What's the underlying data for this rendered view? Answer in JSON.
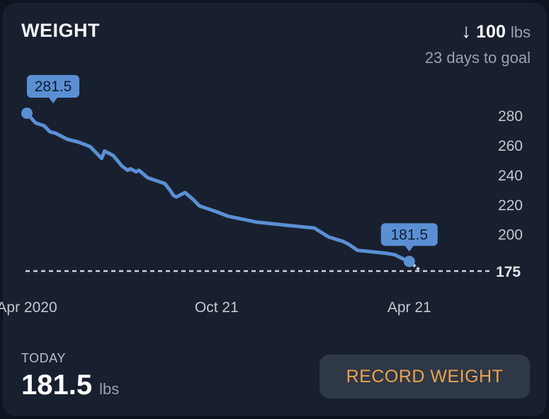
{
  "header": {
    "title": "WEIGHT",
    "change_arrow": "↓",
    "change_value": "100",
    "change_unit": "lbs",
    "goal_text": "23 days to goal"
  },
  "chart_data": {
    "type": "line",
    "series": [
      {
        "x": [
          0,
          3,
          6,
          8,
          10,
          14,
          18,
          22,
          26,
          27,
          28,
          30,
          33,
          35,
          36,
          38,
          39,
          42,
          45,
          48,
          50,
          51,
          52,
          55,
          58,
          60,
          63,
          66,
          70,
          75,
          80,
          85,
          90,
          95,
          100,
          105,
          110,
          112,
          115,
          120,
          125,
          128,
          130,
          133
        ],
        "y": [
          281.5,
          275,
          273,
          269,
          268,
          264,
          262,
          259,
          251,
          256,
          255,
          253,
          246,
          243,
          244,
          242,
          243,
          238,
          236,
          234,
          229,
          226,
          225,
          228,
          223,
          219,
          217,
          215,
          212,
          210,
          208,
          207,
          206,
          205,
          204,
          198,
          195,
          193,
          189,
          188,
          187,
          186,
          184,
          181.5
        ]
      }
    ],
    "projection": {
      "x": [
        133,
        137
      ],
      "y": [
        181.5,
        175
      ]
    },
    "start_label": "281.5",
    "end_label": "181.5",
    "goal_line": 175,
    "goal_label": "175",
    "y_ticks": [
      280,
      260,
      240,
      220,
      200
    ],
    "x_ticks": [
      {
        "x": 0,
        "label": "Apr 2020"
      },
      {
        "x": 66,
        "label": "Oct 21"
      },
      {
        "x": 133,
        "label": "Apr 21"
      }
    ],
    "xlim": [
      0,
      137
    ],
    "ylim": [
      175,
      281.5
    ],
    "grid": false,
    "colors": {
      "line": "#5b8fd4",
      "goal_line": "#d0d3d8",
      "label_bg": "#5b8fd4",
      "label_text": "#0f1b2d"
    }
  },
  "today": {
    "label": "TODAY",
    "value": "181.5",
    "unit": "lbs"
  },
  "record_button": {
    "label": "RECORD WEIGHT"
  }
}
